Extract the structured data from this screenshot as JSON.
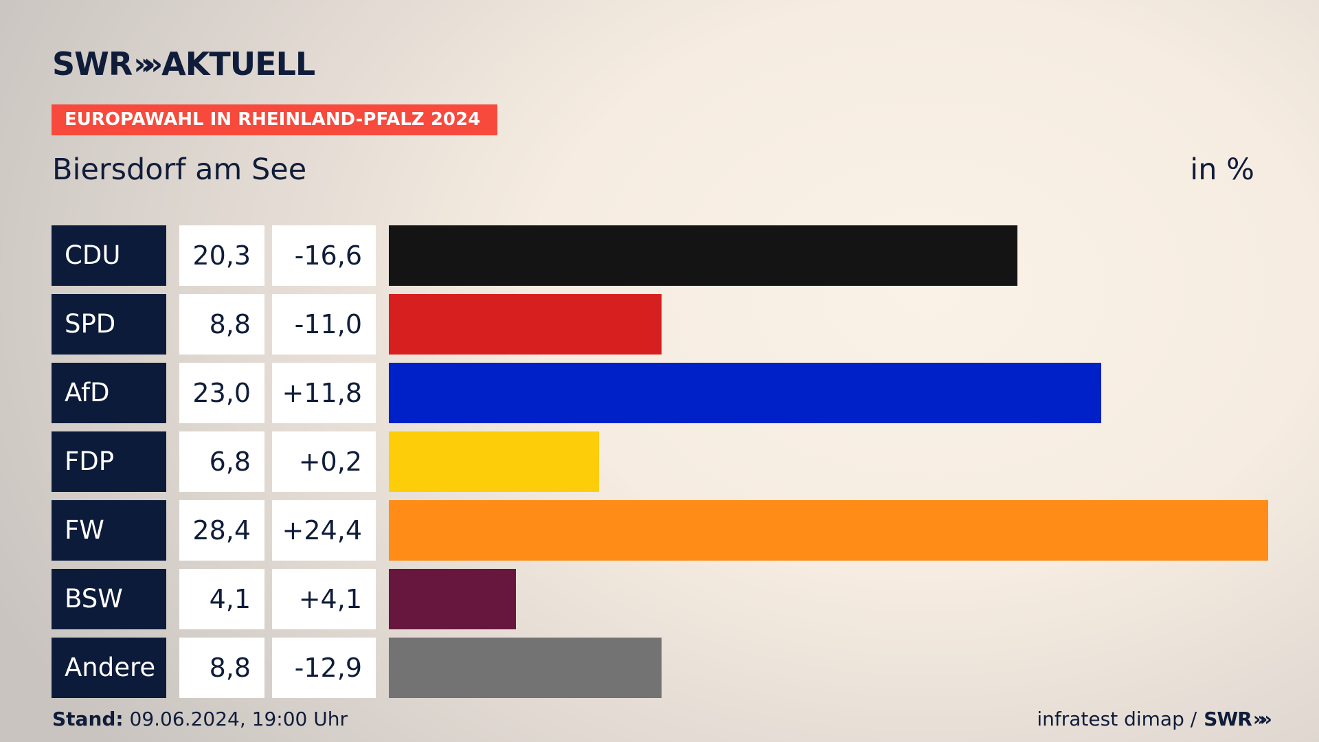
{
  "brand": {
    "name": "SWR",
    "chevrons": "»",
    "product": "AKTUELL"
  },
  "banner": "EUROPAWAHL IN RHEINLAND-PFALZ 2024",
  "region": "Biersdorf am See",
  "unit_label": "in %",
  "chart_data": {
    "type": "bar",
    "orientation": "horizontal",
    "categories": [
      "CDU",
      "SPD",
      "AfD",
      "FDP",
      "FW",
      "BSW",
      "Andere"
    ],
    "values": [
      20.3,
      8.8,
      23.0,
      6.8,
      28.4,
      4.1,
      8.8
    ],
    "value_labels": [
      "20,3",
      "8,8",
      "23,0",
      "6,8",
      "28,4",
      "4,1",
      "8,8"
    ],
    "change_labels": [
      "-16,6",
      "-11,0",
      "+11,8",
      "+0,2",
      "+24,4",
      "+4,1",
      "-12,9"
    ],
    "changes": [
      -16.6,
      -11.0,
      11.8,
      0.2,
      24.4,
      4.1,
      -12.9
    ],
    "colors": [
      "#141414",
      "#d71f1f",
      "#0021c8",
      "#fecd0a",
      "#fe8c17",
      "#67173d",
      "#737373"
    ],
    "xlim": [
      0,
      28.4
    ]
  },
  "footer": {
    "stand_label": "Stand:",
    "stand_value": "09.06.2024, 19:00 Uhr",
    "source": "infratest dimap /",
    "source_brand": "SWR",
    "source_chevrons": "»"
  }
}
